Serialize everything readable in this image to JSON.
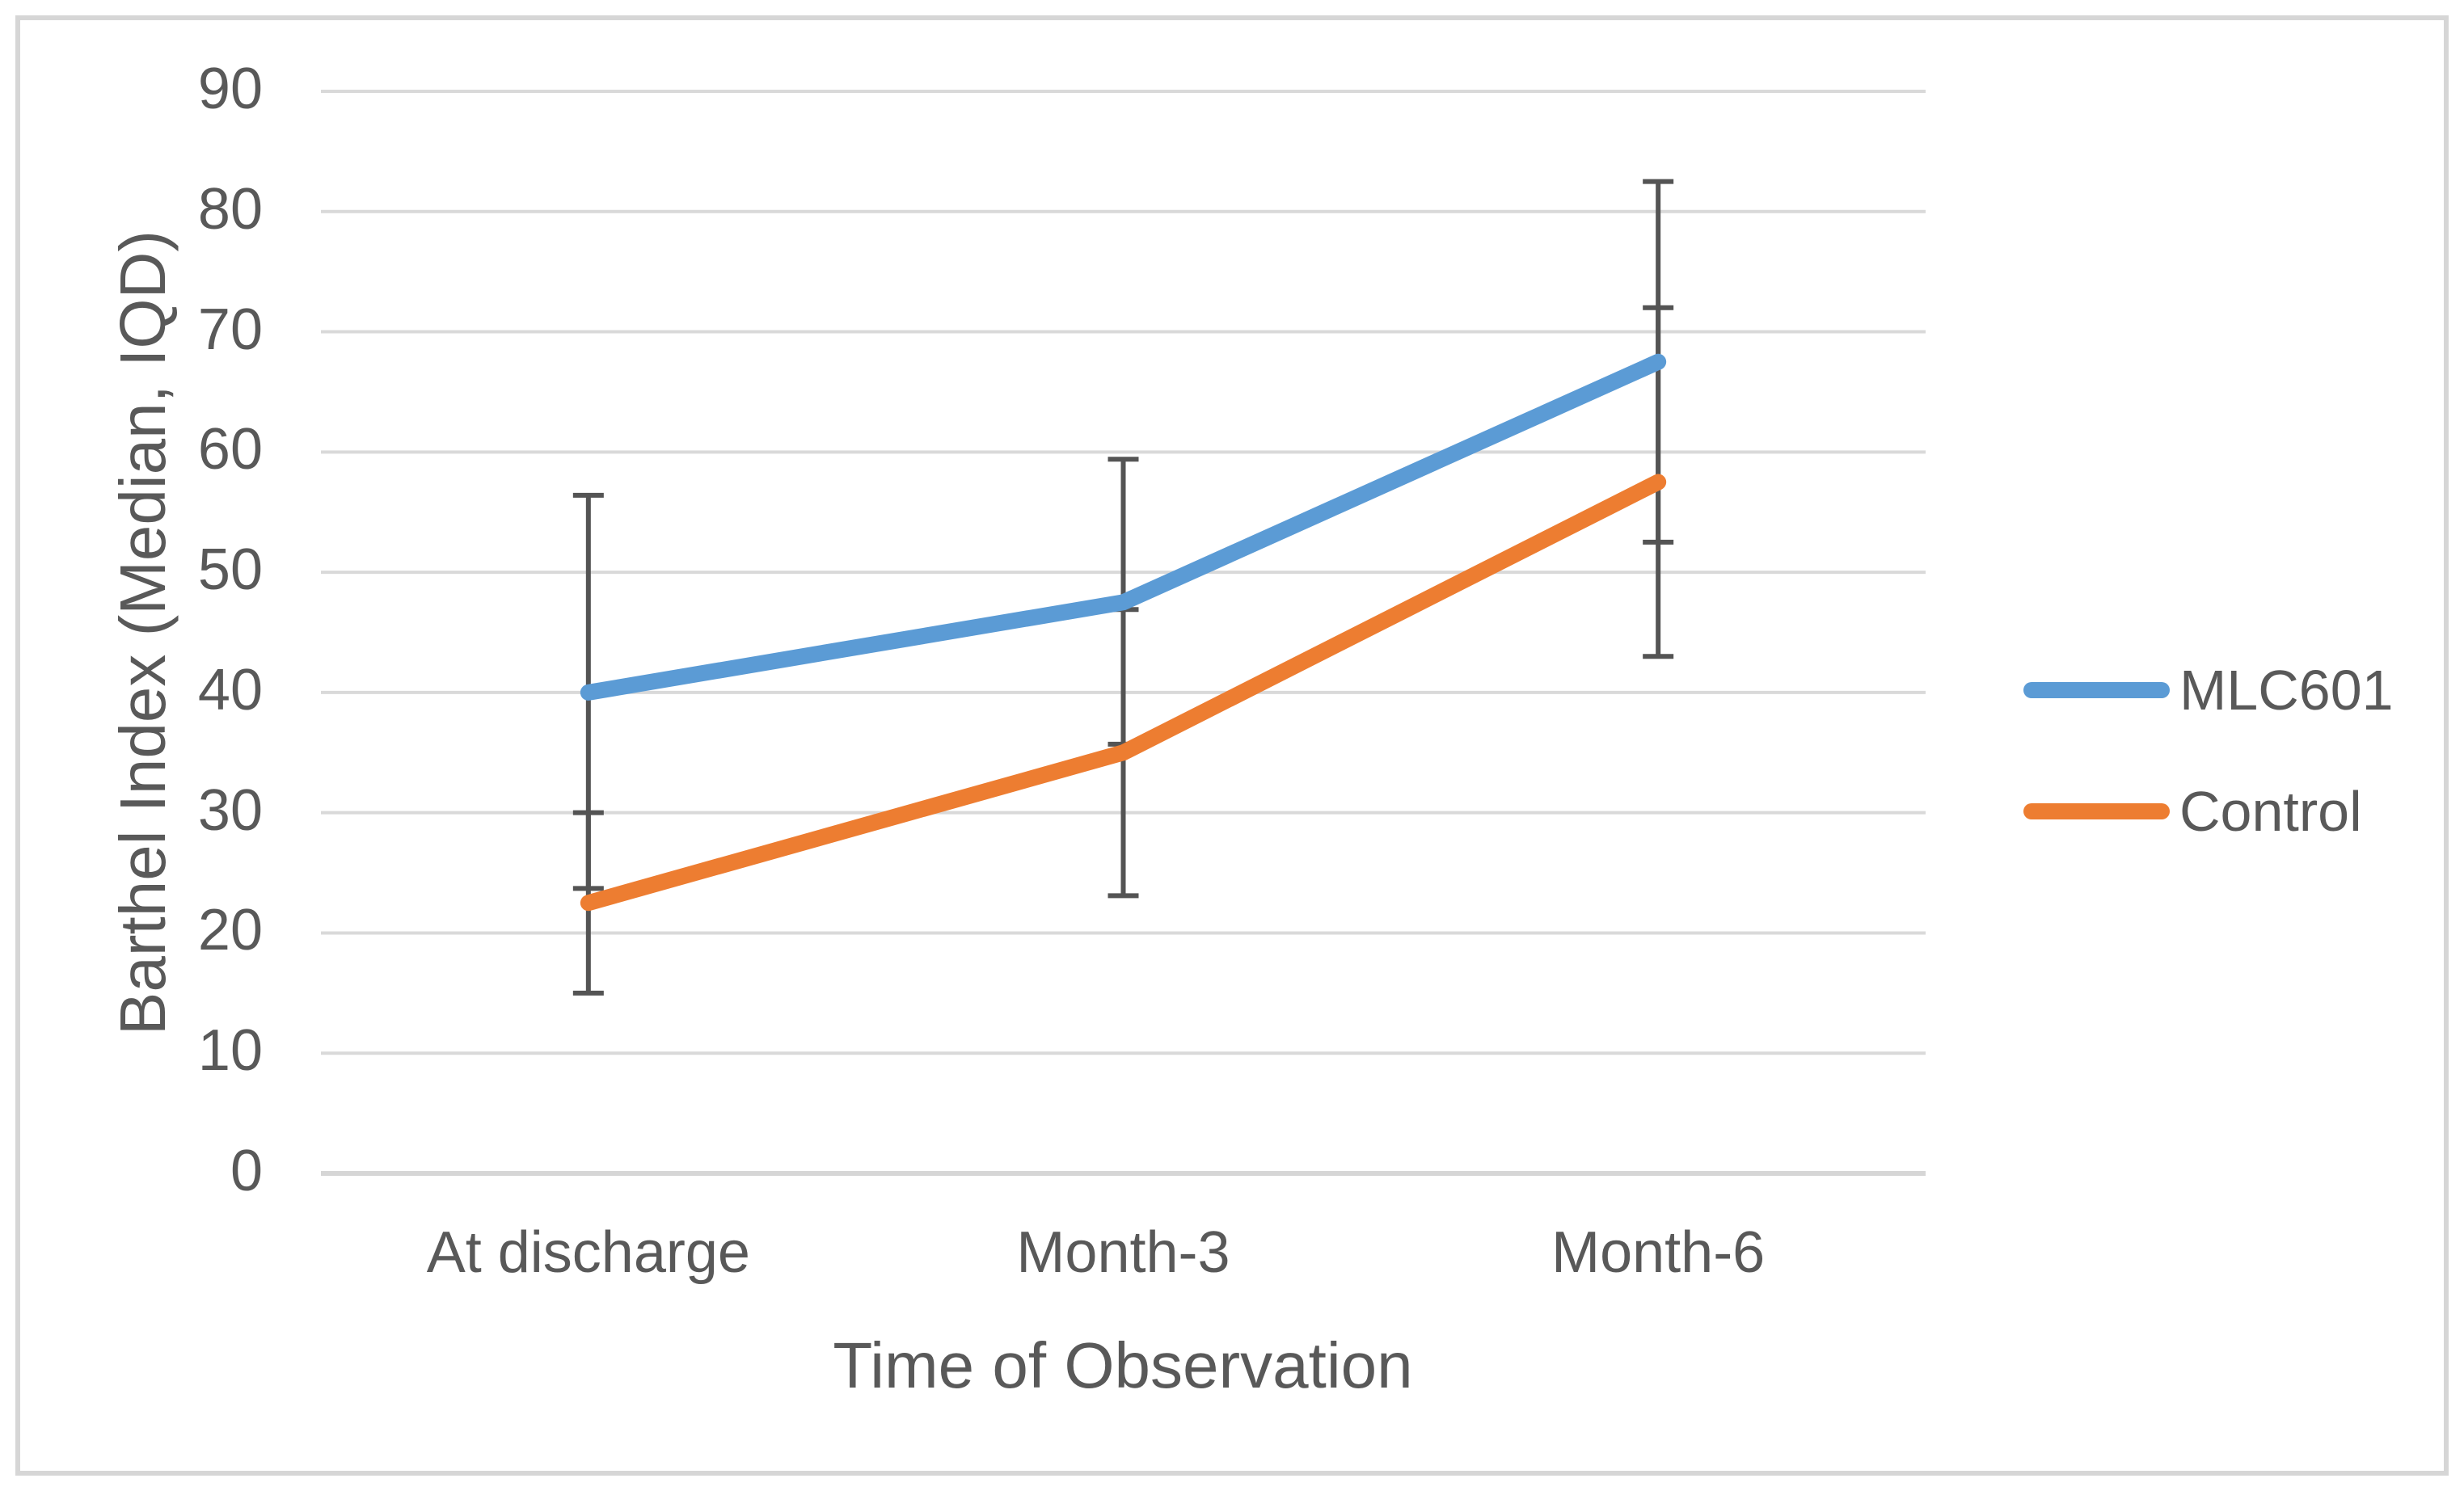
{
  "chart_data": {
    "type": "line",
    "title": "",
    "categories": [
      "At discharge",
      "Month-3",
      "Month-6"
    ],
    "series": [
      {
        "name": "MLC601",
        "color": "#5B9BD5",
        "values": [
          40,
          47.5,
          67.5
        ],
        "error_low": [
          23.7,
          35.7,
          52.5
        ],
        "error_high": [
          56.4,
          59.4,
          82.5
        ]
      },
      {
        "name": "Control",
        "color": "#ED7D31",
        "values": [
          22.5,
          35,
          57.5
        ],
        "error_low": [
          15,
          23.1,
          43
        ],
        "error_high": [
          30,
          46.9,
          72
        ]
      }
    ],
    "xlabel": "Time of Observation",
    "ylabel": "Barthel Index (Median, IQD)",
    "ylim": [
      0,
      90
    ],
    "yticks": [
      0,
      10,
      20,
      30,
      40,
      50,
      60,
      70,
      80,
      90
    ],
    "grid": true,
    "legend_position": "right",
    "colors": {
      "gridline": "#D9D9D9",
      "axis_line": "#D6D6D6",
      "error_bar": "#545454",
      "text": "#595959",
      "figure_border": "#D6D6D6"
    }
  }
}
